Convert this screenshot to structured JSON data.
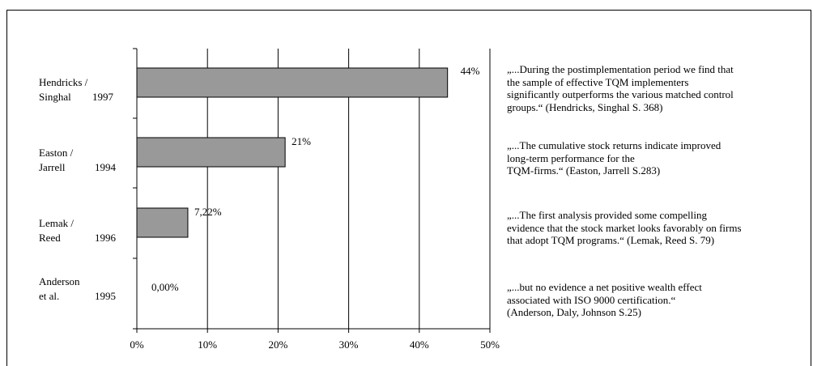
{
  "chart_data": {
    "type": "bar",
    "orientation": "horizontal",
    "categories": [
      {
        "name": "Hendricks /",
        "name2": "Singhal",
        "year": "1997"
      },
      {
        "name": "Easton /",
        "name2": "Jarrell",
        "year": "1994"
      },
      {
        "name": "Lemak /",
        "name2": "Reed",
        "year": "1996"
      },
      {
        "name": "Anderson",
        "name2": "et al.",
        "year": "1995"
      }
    ],
    "values": [
      44,
      21,
      7.22,
      0
    ],
    "value_labels": [
      "44%",
      "21%",
      "7,22%",
      "0,00%"
    ],
    "xlim": [
      0,
      50
    ],
    "x_ticks": [
      "0%",
      "10%",
      "20%",
      "30%",
      "40%",
      "50%"
    ],
    "grid": true,
    "bar_color": "#999999"
  },
  "quotes": [
    {
      "lines": [
        "„...During the postimplementation period we  find that",
        "the sample of effective TQM implementers",
        "significantly outperforms the various matched control",
        "groups.“ (Hendricks, Singhal  S. 368)"
      ]
    },
    {
      "lines": [
        "„...The cumulative stock returns indicate improved",
        "long-term performance for the",
        "TQM-firms.“ (Easton, Jarrell S.283)"
      ]
    },
    {
      "lines": [
        "„...The first analysis provided some compelling",
        "evidence that the stock market looks favorably  on firms",
        "that adopt TQM programs.“ (Lemak, Reed S. 79)"
      ]
    },
    {
      "lines": [
        "„...but no evidence a net positive wealth effect",
        "associated with ISO 9000 certification.“",
        " (Anderson, Daly, Johnson S.25)"
      ]
    }
  ]
}
